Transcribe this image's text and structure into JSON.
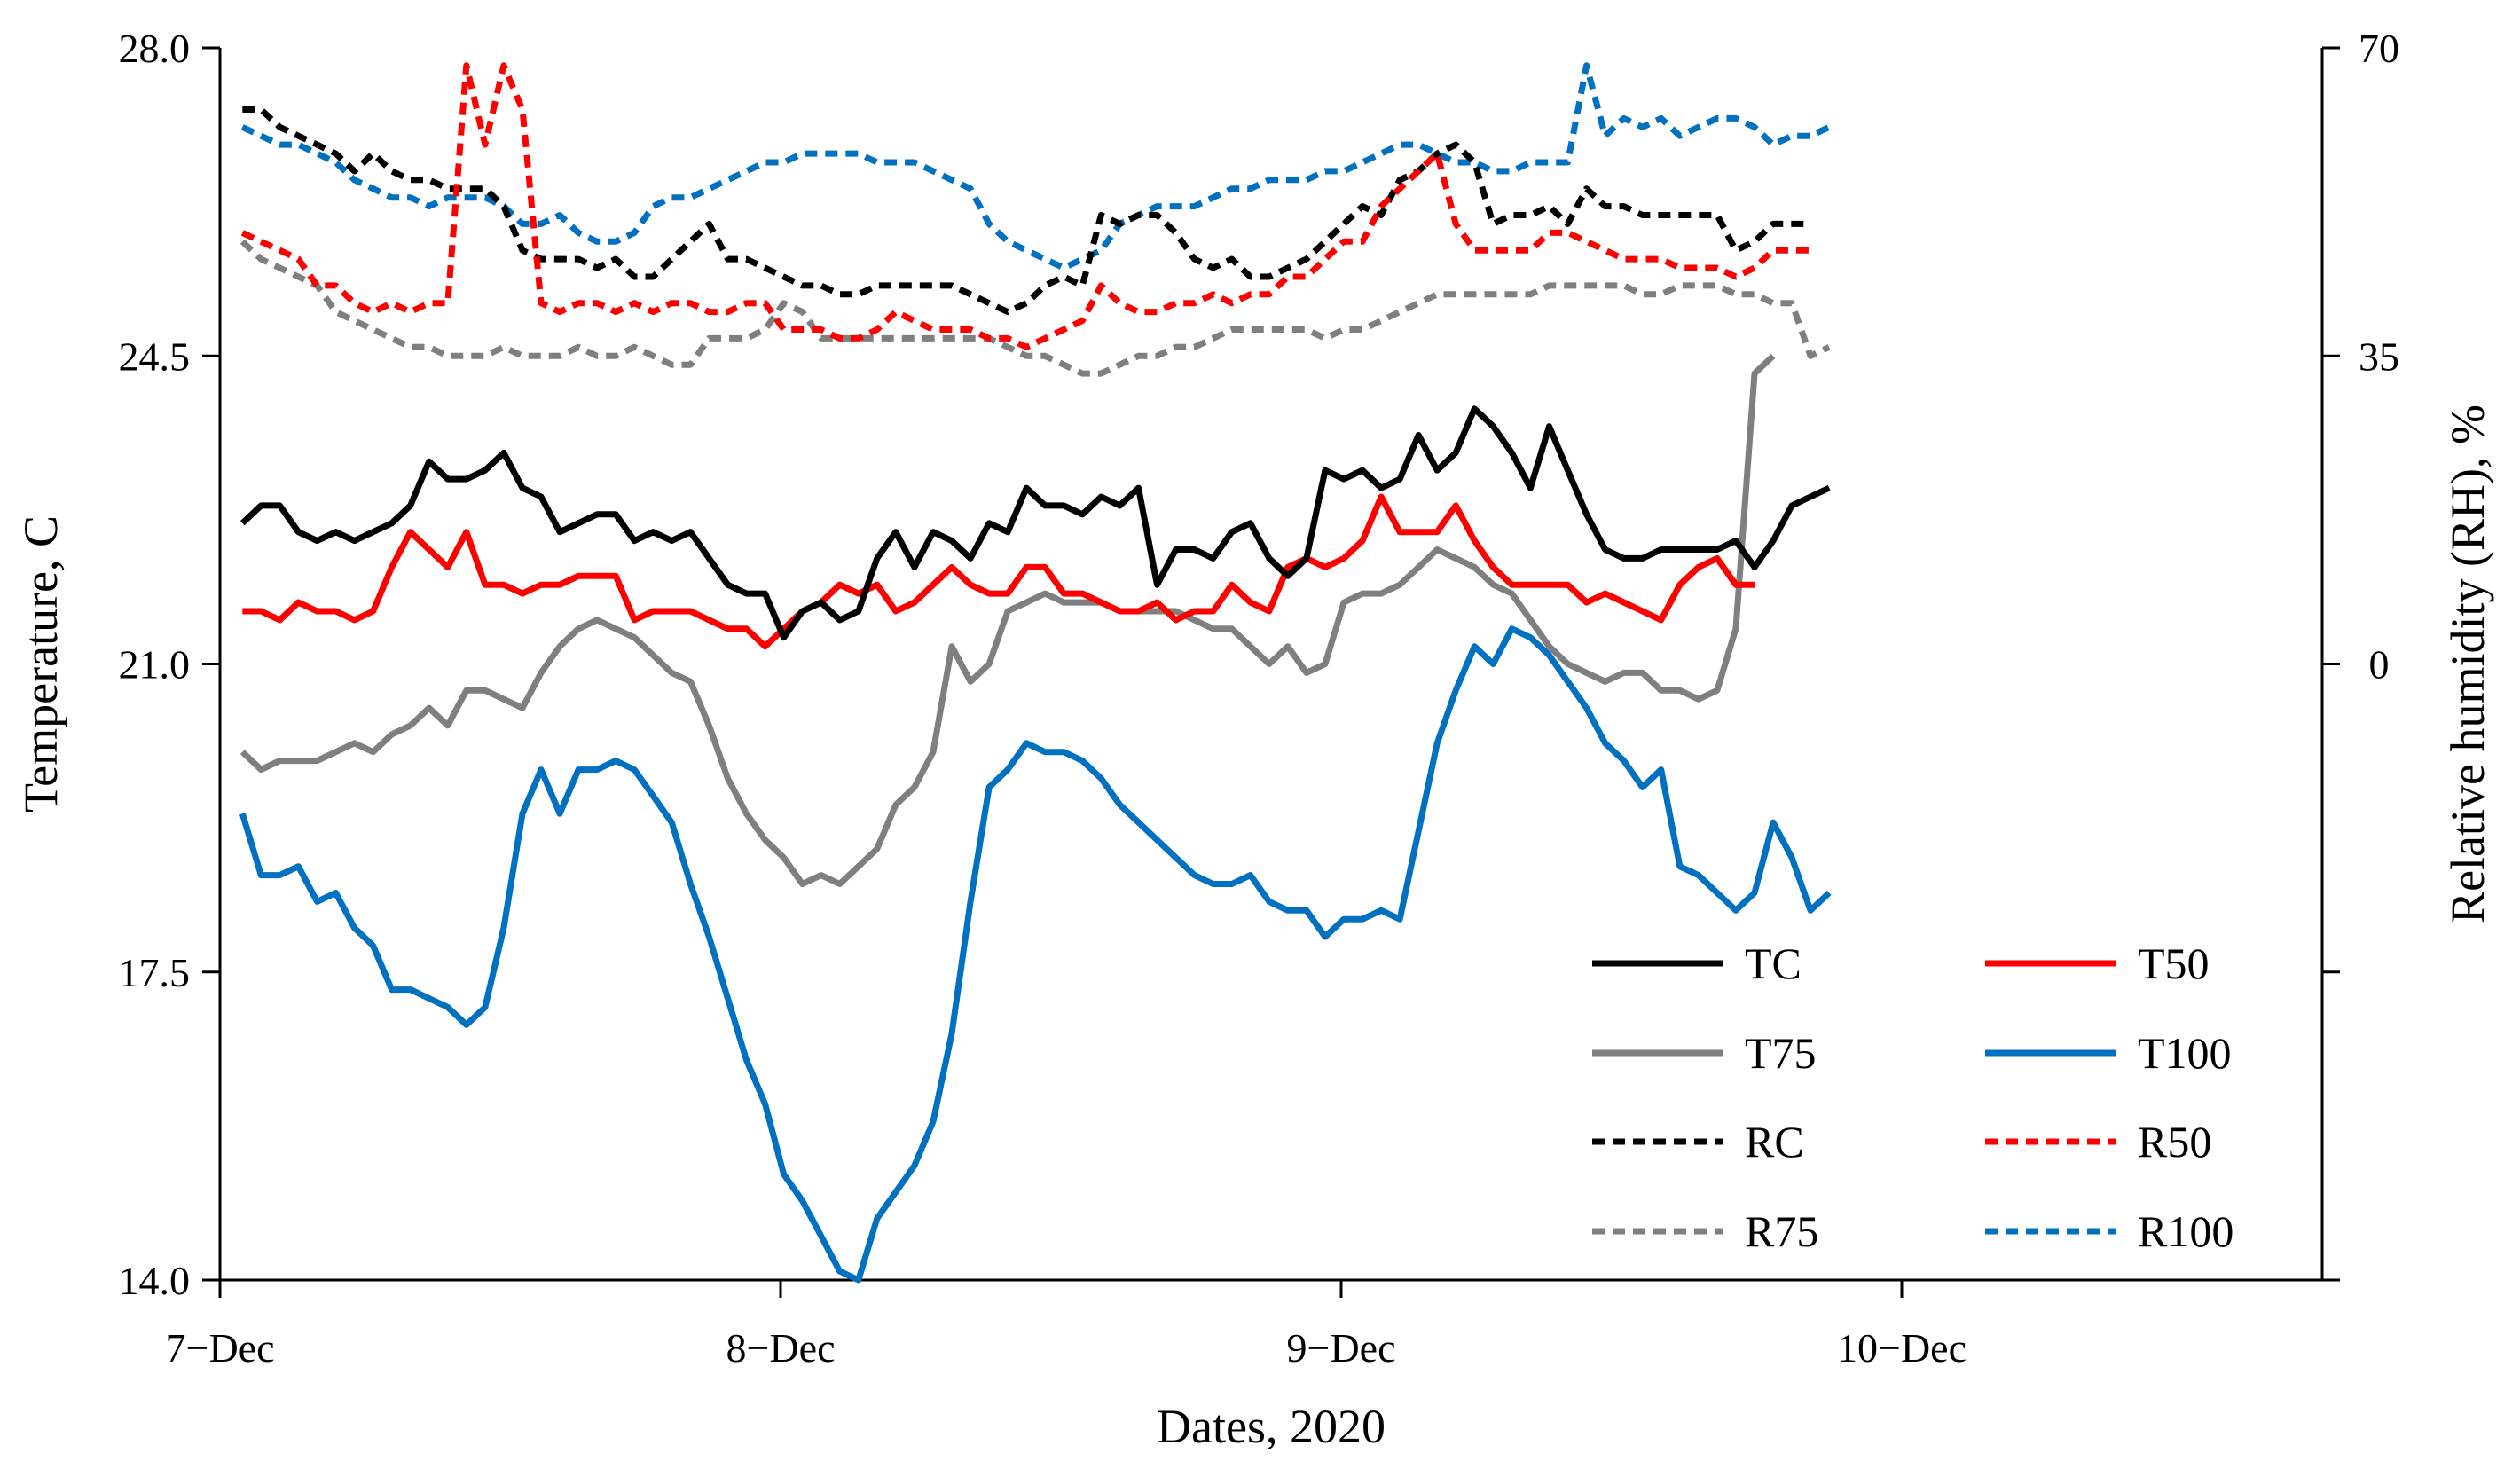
{
  "chart_data": {
    "type": "line",
    "xlabel": "Dates, 2020",
    "ylabel": "Temperature, C",
    "y2label": "Relative humidity (RH), %",
    "x_range": [
      0,
      3.8
    ],
    "ylim": [
      14.0,
      28.0
    ],
    "y2lim": [
      -70,
      70
    ],
    "x_ticks": [
      {
        "value": 0,
        "label": "7−Dec"
      },
      {
        "value": 1,
        "label": "8−Dec"
      },
      {
        "value": 2,
        "label": "9−Dec"
      },
      {
        "value": 3,
        "label": "10−Dec"
      }
    ],
    "y_ticks": [
      {
        "value": 14.0,
        "label": "14.0"
      },
      {
        "value": 17.5,
        "label": "17.5"
      },
      {
        "value": 21.0,
        "label": "21.0"
      },
      {
        "value": 24.5,
        "label": "24.5"
      },
      {
        "value": 28.0,
        "label": "28.0"
      }
    ],
    "y2_ticks": [
      {
        "value": 70,
        "label": "70"
      },
      {
        "value": 35,
        "label": "35"
      },
      {
        "value": 0,
        "label": "0"
      },
      {
        "value": -35,
        "label": ""
      },
      {
        "value": -70,
        "label": ""
      }
    ],
    "x_start": 0.04,
    "x_step": 0.0333,
    "series": [
      {
        "name": "TC",
        "axis": "left",
        "color": "#000000",
        "dash": "solid",
        "legend": {
          "col": 0,
          "row": 0
        },
        "values": [
          22.6,
          22.8,
          22.8,
          22.5,
          22.4,
          22.5,
          22.4,
          22.5,
          22.6,
          22.8,
          23.3,
          23.1,
          23.1,
          23.2,
          23.4,
          23.0,
          22.9,
          22.5,
          22.6,
          22.7,
          22.7,
          22.4,
          22.5,
          22.4,
          22.5,
          22.2,
          21.9,
          21.8,
          21.8,
          21.3,
          21.6,
          21.7,
          21.5,
          21.6,
          22.2,
          22.5,
          22.1,
          22.5,
          22.4,
          22.2,
          22.6,
          22.5,
          23.0,
          22.8,
          22.8,
          22.7,
          22.9,
          22.8,
          23.0,
          21.9,
          22.3,
          22.3,
          22.2,
          22.5,
          22.6,
          22.2,
          22.0,
          22.2,
          23.2,
          23.1,
          23.2,
          23.0,
          23.1,
          23.6,
          23.2,
          23.4,
          23.9,
          23.7,
          23.4,
          23.0,
          23.7,
          23.2,
          22.7,
          22.3,
          22.2,
          22.2,
          22.3,
          22.3,
          22.3,
          22.3,
          22.4,
          22.1,
          22.4,
          22.8,
          22.9,
          23.0
        ]
      },
      {
        "name": "T50",
        "axis": "left",
        "color": "#ff0000",
        "dash": "solid",
        "legend": {
          "col": 1,
          "row": 0
        },
        "values": [
          21.6,
          21.6,
          21.5,
          21.7,
          21.6,
          21.6,
          21.5,
          21.6,
          22.1,
          22.5,
          22.3,
          22.1,
          22.5,
          21.9,
          21.9,
          21.8,
          21.9,
          21.9,
          22.0,
          22.0,
          22.0,
          21.5,
          21.6,
          21.6,
          21.6,
          21.5,
          21.4,
          21.4,
          21.2,
          21.4,
          21.6,
          21.7,
          21.9,
          21.8,
          21.9,
          21.6,
          21.7,
          21.9,
          22.1,
          21.9,
          21.8,
          21.8,
          22.1,
          22.1,
          21.8,
          21.8,
          21.7,
          21.6,
          21.6,
          21.7,
          21.5,
          21.6,
          21.6,
          21.9,
          21.7,
          21.6,
          22.1,
          22.2,
          22.1,
          22.2,
          22.4,
          22.9,
          22.5,
          22.5,
          22.5,
          22.8,
          22.4,
          22.1,
          21.9,
          21.9,
          21.9,
          21.9,
          21.7,
          21.8,
          21.7,
          21.6,
          21.5,
          21.9,
          22.1,
          22.2,
          21.9,
          21.9
        ]
      },
      {
        "name": "T75",
        "axis": "left",
        "color": "#7f7f7f",
        "dash": "solid",
        "legend": {
          "col": 0,
          "row": 1
        },
        "values": [
          20.0,
          19.8,
          19.9,
          19.9,
          19.9,
          20.0,
          20.1,
          20.0,
          20.2,
          20.3,
          20.5,
          20.3,
          20.7,
          20.7,
          20.6,
          20.5,
          20.9,
          21.2,
          21.4,
          21.5,
          21.4,
          21.3,
          21.1,
          20.9,
          20.8,
          20.3,
          19.7,
          19.3,
          19.0,
          18.8,
          18.5,
          18.6,
          18.5,
          18.7,
          18.9,
          19.4,
          19.6,
          20.0,
          21.2,
          20.8,
          21.0,
          21.6,
          21.7,
          21.8,
          21.7,
          21.7,
          21.7,
          21.6,
          21.6,
          21.6,
          21.6,
          21.5,
          21.4,
          21.4,
          21.2,
          21.0,
          21.2,
          20.9,
          21.0,
          21.7,
          21.8,
          21.8,
          21.9,
          22.1,
          22.3,
          22.2,
          22.1,
          21.9,
          21.8,
          21.5,
          21.2,
          21.0,
          20.9,
          20.8,
          20.9,
          20.9,
          20.7,
          20.7,
          20.6,
          20.7,
          21.4,
          24.3,
          24.5
        ]
      },
      {
        "name": "T100",
        "axis": "left",
        "color": "#0070c0",
        "dash": "solid",
        "legend": {
          "col": 1,
          "row": 1
        },
        "values": [
          19.3,
          18.6,
          18.6,
          18.7,
          18.3,
          18.4,
          18.0,
          17.8,
          17.3,
          17.3,
          17.2,
          17.1,
          16.9,
          17.1,
          18.0,
          19.3,
          19.8,
          19.3,
          19.8,
          19.8,
          19.9,
          19.8,
          19.5,
          19.2,
          18.5,
          17.9,
          17.2,
          16.5,
          16.0,
          15.2,
          14.9,
          14.5,
          14.1,
          14.0,
          14.7,
          15.0,
          15.3,
          15.8,
          16.8,
          18.3,
          19.6,
          19.8,
          20.1,
          20.0,
          20.0,
          19.9,
          19.7,
          19.4,
          19.2,
          19.0,
          18.8,
          18.6,
          18.5,
          18.5,
          18.6,
          18.3,
          18.2,
          18.2,
          17.9,
          18.1,
          18.1,
          18.2,
          18.1,
          19.1,
          20.1,
          20.7,
          21.2,
          21.0,
          21.4,
          21.3,
          21.1,
          20.8,
          20.5,
          20.1,
          19.9,
          19.6,
          19.8,
          18.7,
          18.6,
          18.4,
          18.2,
          18.4,
          19.2,
          18.8,
          18.2,
          18.4
        ]
      },
      {
        "name": "RC",
        "axis": "right",
        "color": "#000000",
        "dash": "dashed",
        "legend": {
          "col": 0,
          "row": 2
        },
        "values": [
          63,
          63,
          61,
          60,
          59,
          58,
          56,
          58,
          56,
          55,
          55,
          54,
          54,
          54,
          52,
          47,
          46,
          46,
          46,
          45,
          46,
          44,
          44,
          46,
          48,
          50,
          46,
          46,
          45,
          44,
          43,
          43,
          42,
          42,
          43,
          43,
          43,
          43,
          43,
          42,
          41,
          40,
          41,
          43,
          44,
          43,
          51,
          50,
          51,
          51,
          49,
          46,
          45,
          46,
          44,
          44,
          45,
          46,
          48,
          50,
          52,
          51,
          55,
          56,
          58,
          59,
          57,
          50,
          51,
          51,
          52,
          50,
          54,
          52,
          52,
          51,
          51,
          51,
          51,
          51,
          47,
          48,
          50,
          50,
          50
        ]
      },
      {
        "name": "R50",
        "axis": "right",
        "color": "#ff0000",
        "dash": "dashed",
        "legend": {
          "col": 1,
          "row": 2
        },
        "values": [
          49,
          48,
          47,
          46,
          43,
          43,
          41,
          40,
          41,
          40,
          41,
          41,
          68,
          59,
          68,
          63,
          41,
          40,
          41,
          41,
          40,
          41,
          40,
          41,
          41,
          40,
          40,
          41,
          41,
          38,
          38,
          38,
          37,
          37,
          38,
          40,
          39,
          38,
          38,
          38,
          37,
          37,
          36,
          37,
          38,
          39,
          43,
          41,
          40,
          40,
          41,
          41,
          42,
          41,
          42,
          42,
          44,
          44,
          46,
          48,
          48,
          52,
          54,
          56,
          58,
          50,
          47,
          47,
          47,
          47,
          49,
          49,
          48,
          47,
          46,
          46,
          46,
          45,
          45,
          45,
          44,
          45,
          47,
          47,
          47
        ]
      },
      {
        "name": "R75",
        "axis": "right",
        "color": "#7f7f7f",
        "dash": "dashed",
        "legend": {
          "col": 0,
          "row": 3
        },
        "values": [
          48,
          46,
          45,
          44,
          43,
          40,
          39,
          38,
          37,
          36,
          36,
          35,
          35,
          35,
          36,
          35,
          35,
          35,
          36,
          35,
          35,
          36,
          35,
          34,
          34,
          37,
          37,
          37,
          38,
          41,
          40,
          37,
          37,
          37,
          37,
          37,
          37,
          37,
          37,
          37,
          37,
          36,
          35,
          35,
          34,
          33,
          33,
          34,
          35,
          35,
          36,
          36,
          37,
          38,
          38,
          38,
          38,
          38,
          37,
          38,
          38,
          39,
          40,
          41,
          42,
          42,
          42,
          42,
          42,
          42,
          43,
          43,
          43,
          43,
          43,
          42,
          42,
          43,
          43,
          43,
          42,
          42,
          41,
          41,
          35,
          36
        ]
      },
      {
        "name": "R100",
        "axis": "right",
        "color": "#0070c0",
        "dash": "dashed",
        "legend": {
          "col": 1,
          "row": 3
        },
        "values": [
          61,
          60,
          59,
          59,
          58,
          57,
          55,
          54,
          53,
          53,
          52,
          53,
          53,
          53,
          52,
          50,
          50,
          51,
          49,
          48,
          48,
          49,
          52,
          53,
          53,
          54,
          55,
          56,
          57,
          57,
          58,
          58,
          58,
          58,
          57,
          57,
          57,
          56,
          55,
          54,
          50,
          48,
          47,
          46,
          45,
          46,
          47,
          50,
          51,
          52,
          52,
          52,
          53,
          54,
          54,
          55,
          55,
          55,
          56,
          56,
          57,
          58,
          59,
          59,
          58,
          57,
          57,
          56,
          56,
          57,
          57,
          57,
          68,
          60,
          62,
          61,
          62,
          60,
          61,
          62,
          62,
          61,
          59,
          60,
          60,
          61
        ]
      }
    ]
  }
}
